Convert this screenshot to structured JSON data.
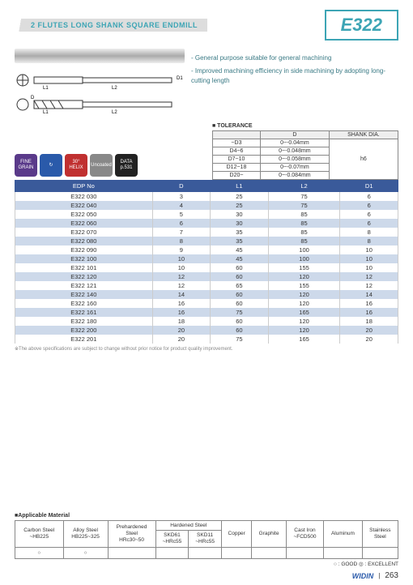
{
  "header": {
    "subtitle": "2 FLUTES LONG SHANK SQUARE ENDMILL",
    "code": "E322"
  },
  "description": [
    "- General purpose suitable for general machining",
    "- Improved machining efficiency in side machining by adopting long-cutting length"
  ],
  "diagramLabels": {
    "l1": "L1",
    "l2": "L2",
    "d": "D",
    "d1": "D1"
  },
  "tolerance": {
    "title": "■ TOLERANCE",
    "headers": [
      "",
      "D",
      "SHANK DIA."
    ],
    "rows": [
      [
        "~D3",
        "0~-0.04mm"
      ],
      [
        "D4~6",
        "0~-0.048mm"
      ],
      [
        "D7~10",
        "0~-0.058mm"
      ],
      [
        "D12~18",
        "0~-0.07mm"
      ],
      [
        "D20~",
        "0~-0.084mm"
      ]
    ],
    "shank": "h6"
  },
  "badges": [
    {
      "label": "FINE\nGRAIN",
      "bg": "#5a3a8a"
    },
    {
      "label": "↻",
      "bg": "#2a5aaa"
    },
    {
      "label": "30°\nHELIX",
      "bg": "#c03030"
    },
    {
      "label": "Uncoated",
      "bg": "#888888"
    },
    {
      "label": "DATA\np.531",
      "bg": "#222222"
    }
  ],
  "table": {
    "headers": [
      "EDP No",
      "D",
      "L1",
      "L2",
      "D1"
    ],
    "rows": [
      [
        "E322 030",
        "3",
        "25",
        "75",
        "6"
      ],
      [
        "E322 040",
        "4",
        "25",
        "75",
        "6"
      ],
      [
        "E322 050",
        "5",
        "30",
        "85",
        "6"
      ],
      [
        "E322 060",
        "6",
        "30",
        "85",
        "6"
      ],
      [
        "E322 070",
        "7",
        "35",
        "85",
        "8"
      ],
      [
        "E322 080",
        "8",
        "35",
        "85",
        "8"
      ],
      [
        "E322 090",
        "9",
        "45",
        "100",
        "10"
      ],
      [
        "E322 100",
        "10",
        "45",
        "100",
        "10"
      ],
      [
        "E322 101",
        "10",
        "60",
        "155",
        "10"
      ],
      [
        "E322 120",
        "12",
        "60",
        "120",
        "12"
      ],
      [
        "E322 121",
        "12",
        "65",
        "155",
        "12"
      ],
      [
        "E322 140",
        "14",
        "60",
        "120",
        "14"
      ],
      [
        "E322 160",
        "16",
        "60",
        "120",
        "16"
      ],
      [
        "E322 161",
        "16",
        "75",
        "165",
        "16"
      ],
      [
        "E322 180",
        "18",
        "60",
        "120",
        "18"
      ],
      [
        "E322 200",
        "20",
        "60",
        "120",
        "20"
      ],
      [
        "E322 201",
        "20",
        "75",
        "165",
        "20"
      ]
    ]
  },
  "note": "※The above specifications are subject to change without prior notice for product quality improvement.",
  "materials": {
    "title": "■Applicable Material",
    "headers": [
      "Carbon Steel\n~HB225",
      "Alloy Steel\nHB225~325",
      "Prehardened\nSteel\nHRc30~50",
      "SKD61\n~HRc55",
      "SKD11\n~HRc55",
      "Copper",
      "Graphite",
      "Cast Iron\n~FCD500",
      "Aluminum",
      "Stainless\nSteel"
    ],
    "groupHeader": "Hardened Steel",
    "row": [
      "○",
      "○",
      "",
      "",
      "",
      "",
      "",
      "",
      "",
      ""
    ]
  },
  "legend": "○ : GOOD   ◎ : EXCELLENT",
  "footer": {
    "logo": "WIDIN",
    "page": "263"
  },
  "colors": {
    "accent": "#3da5b5",
    "thead": "#3a5a9a",
    "stripe": "#cdd9ea"
  }
}
